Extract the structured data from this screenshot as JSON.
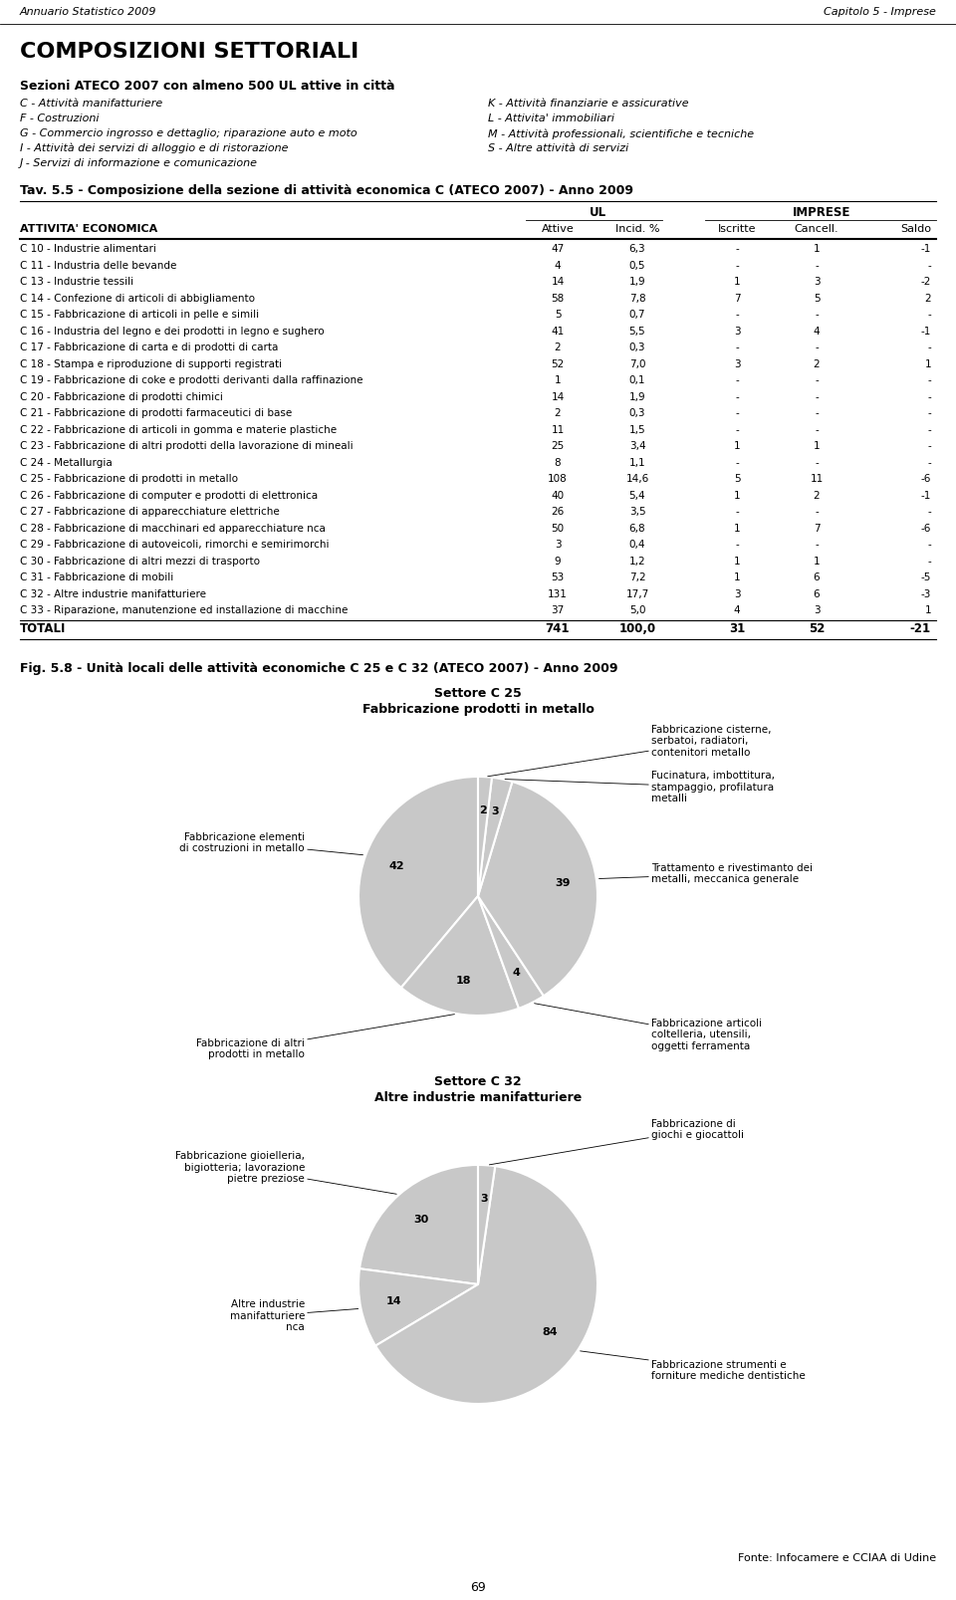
{
  "header": [
    "Annuario Statistico 2009",
    "Capitolo 5 - Imprese"
  ],
  "title": "COMPOSIZIONI SETTORIALI",
  "notes_title": "Sezioni ATECO 2007 con almeno 500 UL attive in città",
  "notes": [
    "C - Attività manifatturiere",
    "F - Costruzioni",
    "G - Commercio ingrosso e dettaglio; riparazione auto e moto",
    "I - Attività dei servizi di alloggio e di ristorazione",
    "J - Servizi di informazione e comunicazione",
    "K - Attività finanziarie e assicurative",
    "L - Attivita' immobiliari",
    "M - Attività professionali, scientifiche e tecniche",
    "S - Altre attività di servizi"
  ],
  "figure_title": "Fig. 5.8 - Unità locali delle attività economiche C 25 e C 32 (ATECO 2007) - Anno 2009",
  "source": "Fonte: Infocamere e CCIAA di Udine",
  "page": 69,
  "chart_data": [
    {
      "type": "table",
      "title": "Tav. 5.5 - Composizione della sezione di attività economica C (ATECO 2007) - Anno 2009",
      "xlabel": "ATTIVITA' ECONOMICA",
      "categories": [
        "C 10 - Industrie alimentari",
        "C 11 - Industria delle bevande",
        "C 13 - Industrie tessili",
        "C 14 - Confezione di articoli di abbigliamento",
        "C 15 - Fabbricazione di articoli in pelle e simili",
        "C 16 - Industria del legno e dei prodotti in legno e sughero",
        "C 17 - Fabbricazione di carta e di prodotti di carta",
        "C 18 - Stampa e riproduzione di supporti registrati",
        "C 19 - Fabbricazione di coke e prodotti derivanti dalla raffinazione",
        "C 20 - Fabbricazione di prodotti chimici",
        "C 21 - Fabbricazione di prodotti farmaceutici di base",
        "C 22 - Fabbricazione di articoli in gomma e materie plastiche",
        "C 23 - Fabbricazione di altri prodotti della lavorazione di mineali",
        "C 24 - Metallurgia",
        "C 25 - Fabbricazione di prodotti in metallo",
        "C 26 - Fabbricazione di computer e prodotti di elettronica",
        "C 27 - Fabbricazione di apparecchiature elettriche",
        "C 28 - Fabbricazione di macchinari ed apparecchiature nca",
        "C 29 - Fabbricazione di autoveicoli, rimorchi e semirimorchi",
        "C 30 - Fabbricazione di altri mezzi di trasporto",
        "C 31 - Fabbricazione di mobili",
        "C 32 - Altre industrie manifatturiere",
        "C 33 - Riparazione, manutenzione ed installazione di macchine"
      ],
      "total_label": "TOTALI",
      "series": [
        {
          "name": "Attive",
          "group": "UL",
          "values": [
            47,
            4,
            14,
            58,
            5,
            41,
            2,
            52,
            1,
            14,
            2,
            11,
            25,
            8,
            108,
            40,
            26,
            50,
            3,
            9,
            53,
            131,
            37
          ],
          "total": 741
        },
        {
          "name": "Incid. %",
          "group": "UL",
          "values": [
            6.3,
            0.5,
            1.9,
            7.8,
            0.7,
            5.5,
            0.3,
            7.0,
            0.1,
            1.9,
            0.3,
            1.5,
            3.4,
            1.1,
            14.6,
            5.4,
            3.5,
            6.8,
            0.4,
            1.2,
            7.2,
            17.7,
            5.0
          ],
          "value_labels": [
            "6,3",
            "0,5",
            "1,9",
            "7,8",
            "0,7",
            "5,5",
            "0,3",
            "7,0",
            "0,1",
            "1,9",
            "0,3",
            "1,5",
            "3,4",
            "1,1",
            "14,6",
            "5,4",
            "3,5",
            "6,8",
            "0,4",
            "1,2",
            "7,2",
            "17,7",
            "5,0"
          ],
          "total": 100.0,
          "total_label": "100,0"
        },
        {
          "name": "Iscritte",
          "group": "IMPRESE",
          "values": [
            0,
            0,
            1,
            7,
            0,
            3,
            0,
            3,
            0,
            0,
            0,
            0,
            1,
            0,
            5,
            1,
            0,
            1,
            0,
            1,
            1,
            3,
            4
          ],
          "value_labels": [
            "-",
            "-",
            "1",
            "7",
            "-",
            "3",
            "-",
            "3",
            "-",
            "-",
            "-",
            "-",
            "1",
            "-",
            "5",
            "1",
            "-",
            "1",
            "-",
            "1",
            "1",
            "3",
            "4"
          ],
          "total": 31
        },
        {
          "name": "Cancell.",
          "group": "IMPRESE",
          "values": [
            1,
            0,
            3,
            5,
            0,
            4,
            0,
            2,
            0,
            0,
            0,
            0,
            1,
            0,
            11,
            2,
            0,
            7,
            0,
            1,
            6,
            6,
            3
          ],
          "value_labels": [
            "1",
            "-",
            "3",
            "5",
            "-",
            "4",
            "-",
            "2",
            "-",
            "-",
            "-",
            "-",
            "1",
            "-",
            "11",
            "2",
            "-",
            "7",
            "-",
            "1",
            "6",
            "6",
            "3"
          ],
          "total": 52
        },
        {
          "name": "Saldo",
          "group": "IMPRESE",
          "values": [
            -1,
            0,
            -2,
            2,
            0,
            -1,
            0,
            1,
            0,
            0,
            0,
            0,
            0,
            0,
            -6,
            -1,
            0,
            -6,
            0,
            0,
            -5,
            -3,
            1
          ],
          "value_labels": [
            "-1",
            "-",
            "-2",
            "2",
            "-",
            "-1",
            "-",
            "1",
            "-",
            "-",
            "-",
            "-",
            "-",
            "-",
            "-6",
            "-1",
            "-",
            "-6",
            "-",
            "-",
            "-5",
            "-3",
            "1"
          ],
          "total": -21
        }
      ]
    },
    {
      "type": "pie",
      "title": "Settore C 25",
      "subtitle": "Fabbricazione prodotti in metallo",
      "categories": [
        "Fabbricazione elementi\ndi costruzioni in metallo",
        "Fabbricazione di altri\nprodotti in metallo",
        "Fabbricazione articoli\ncoltelleria, utensili,\noggetti ferramenta",
        "Trattamento e rivestimanto dei\nmetalli, meccanica generale",
        "Fucinatura, imbottitura,\nstampaggio, profilatura\nmetalli",
        "Fabbricazione cisterne,\nserbatoi, radiatori,\ncontenitori metallo"
      ],
      "values": [
        42,
        18,
        4,
        39,
        3,
        2
      ],
      "data_labels": true,
      "color": "#C8C8C8"
    },
    {
      "type": "pie",
      "title": "Settore C 32",
      "subtitle": "Altre industrie manifatturiere",
      "categories": [
        "Fabbricazione gioielleria,\nbigiotteria; lavorazione\npietre preziose",
        "Altre industrie\nmanifatturiere\nnca",
        "Fabbricazione strumenti e\nforniture mediche dentistiche",
        "Fabbricazione di\ngiochi e giocattoli"
      ],
      "values": [
        30,
        14,
        84,
        3
      ],
      "data_labels": true,
      "color": "#C8C8C8"
    }
  ]
}
